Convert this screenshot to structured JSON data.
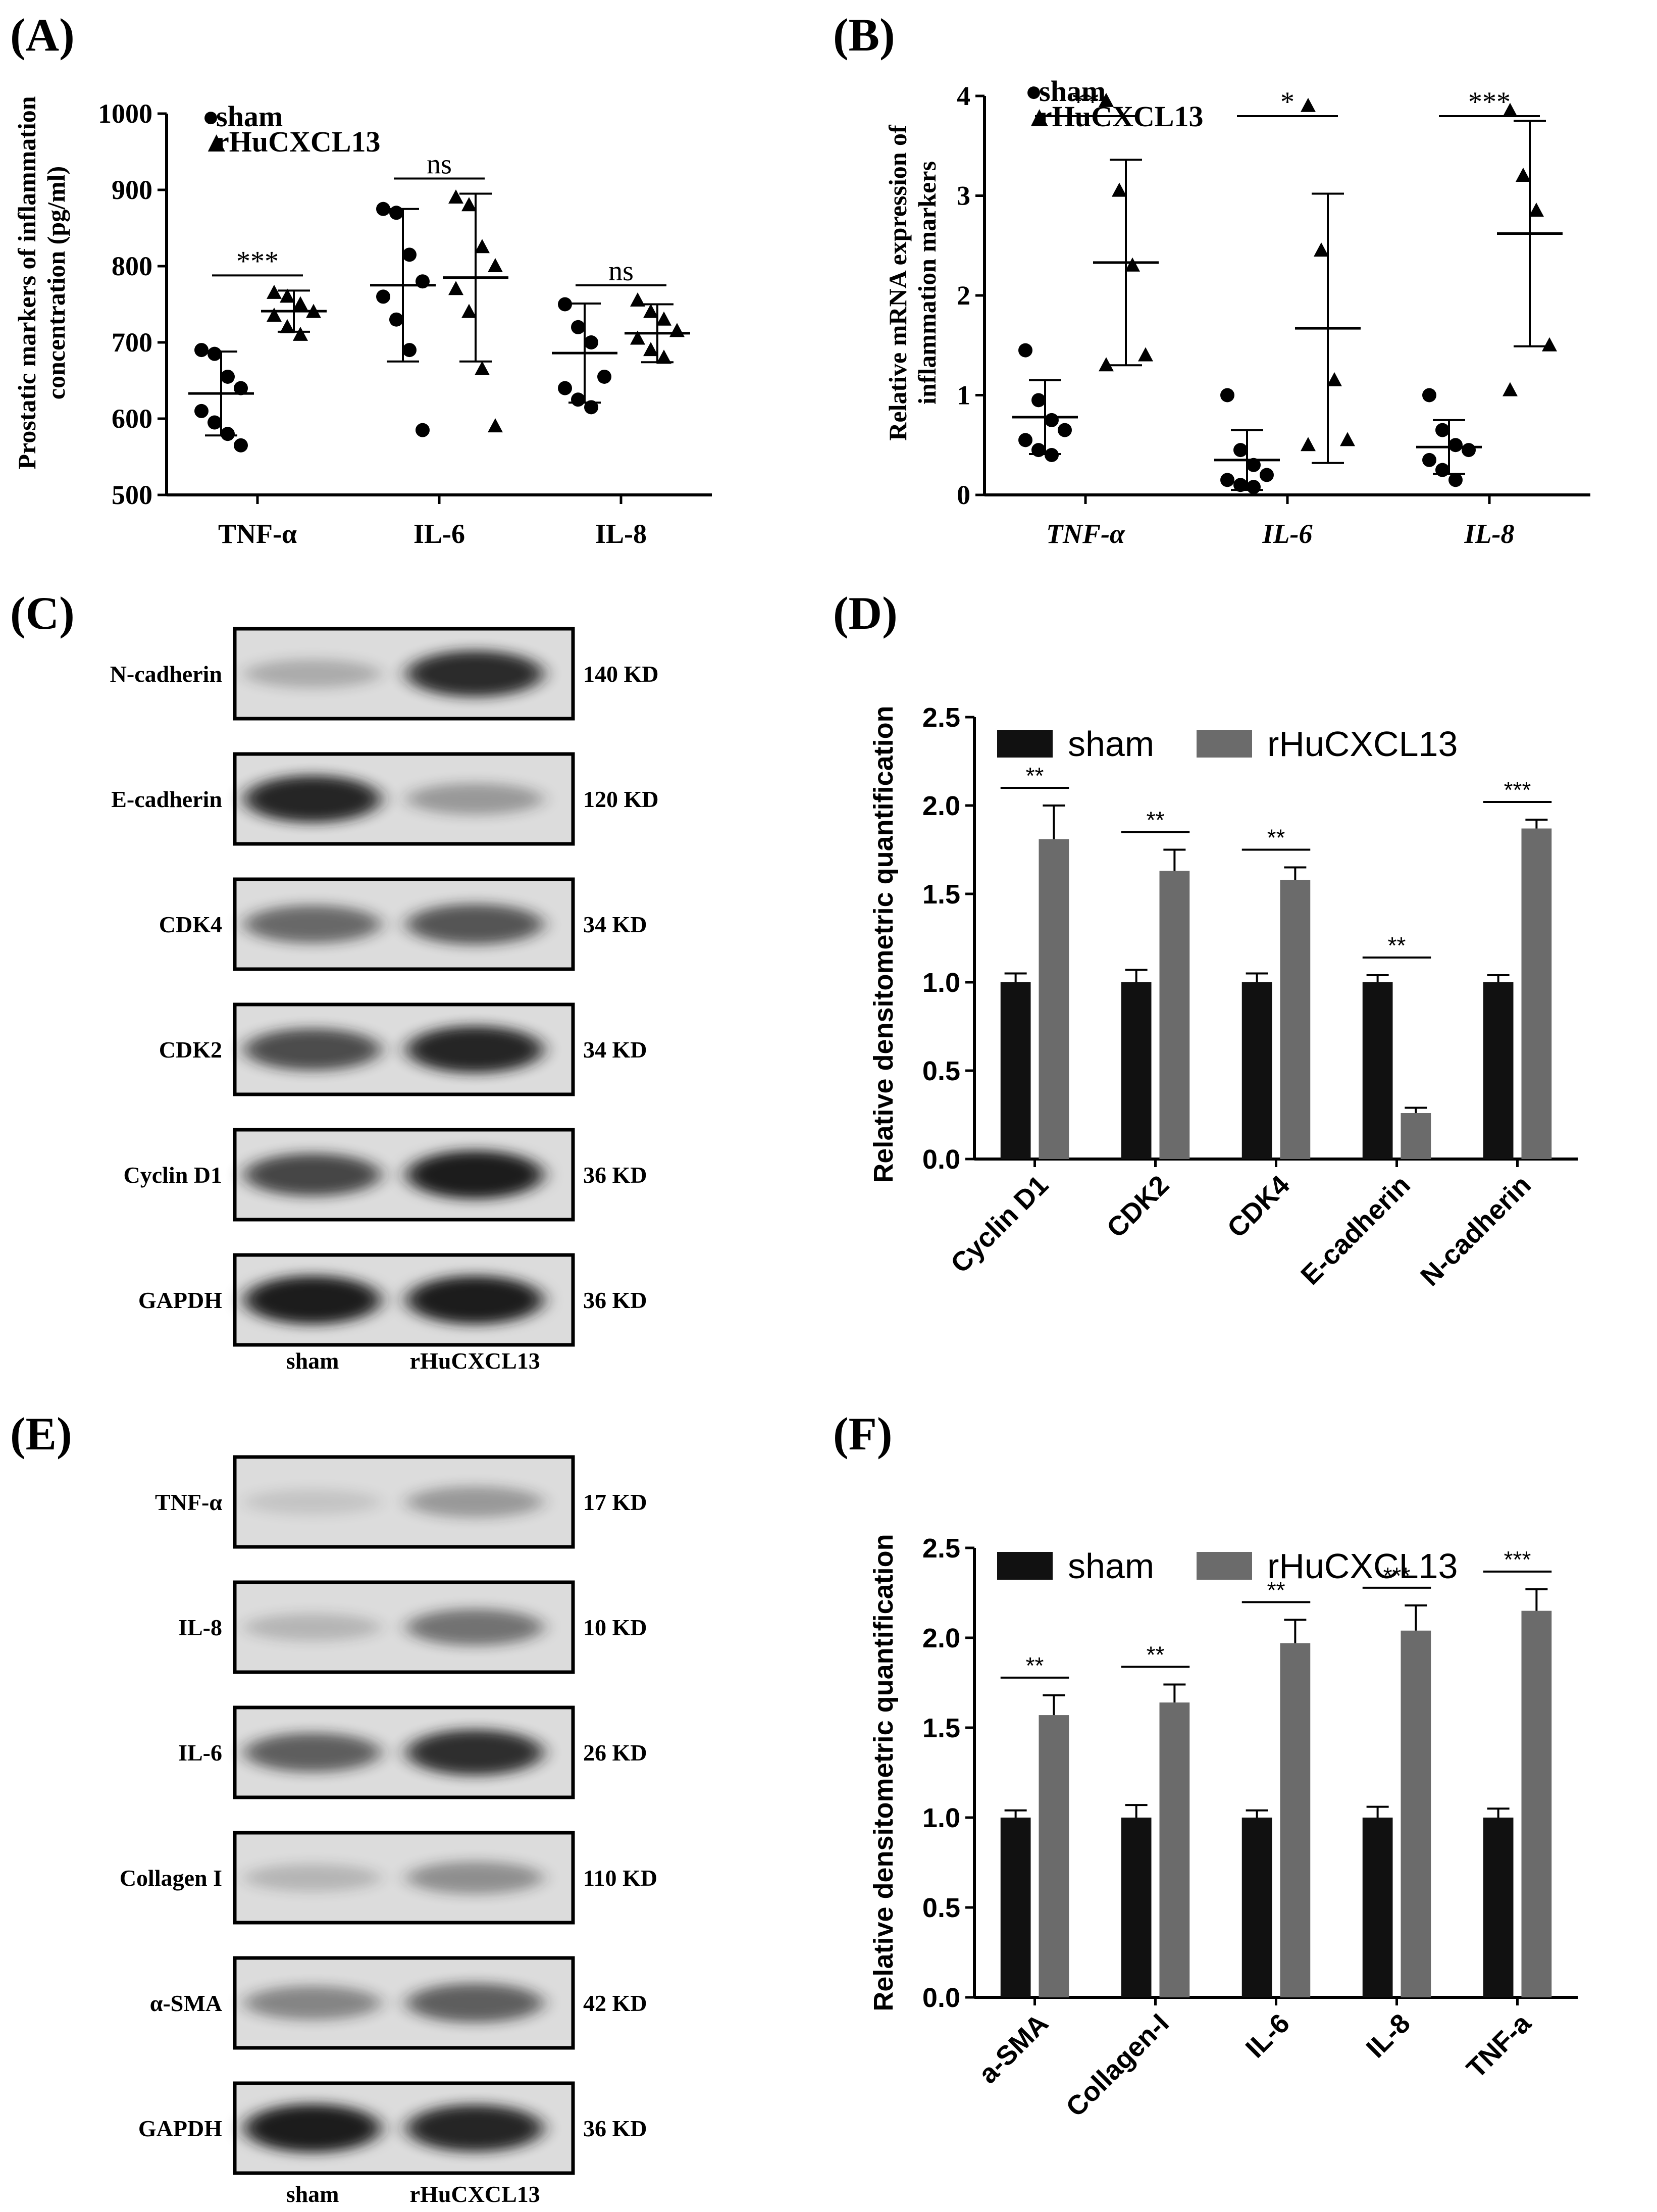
{
  "panels": {
    "A": "(A)",
    "B": "(B)",
    "C": "(C)",
    "D": "(D)",
    "E": "(E)",
    "F": "(F)"
  },
  "colors": {
    "sham": "#111111",
    "rHuCXCL13": "#6b6b6b",
    "membrane": "#dcdcdc",
    "band": "#1a1a1a"
  },
  "chart_data": [
    {
      "panel": "A",
      "type": "scatter",
      "ylabel_line1": "Prostatic markers of inflammation",
      "ylabel_line2": "concentration (pg/ml)",
      "ylim": [
        500,
        1000
      ],
      "yticks": [
        500,
        600,
        700,
        800,
        900,
        1000
      ],
      "legend": [
        {
          "name": "sham",
          "marker": "circle"
        },
        {
          "name": "rHuCXCL13",
          "marker": "triangle"
        }
      ],
      "legend_marks": {
        "sham": "●",
        "rHuCXCL13": "▲"
      },
      "categories": [
        "TNF-α",
        "IL-6",
        "IL-8"
      ],
      "series": [
        {
          "name": "sham",
          "marker": "circle",
          "points": [
            [
              690,
              685,
              655,
              640,
              610,
              595,
              580,
              565
            ],
            [
              875,
              870,
              815,
              780,
              760,
              730,
              690,
              585
            ],
            [
              750,
              720,
              700,
              655,
              640,
              625,
              615
            ]
          ],
          "mean": [
            633,
            775,
            686
          ],
          "sd": [
            55,
            100,
            65
          ]
        },
        {
          "name": "rHuCXCL13",
          "marker": "triangle",
          "points": [
            [
              765,
              760,
              750,
              740,
              735,
              720,
              710
            ],
            [
              890,
              880,
              825,
              800,
              770,
              740,
              665,
              590
            ],
            [
              755,
              740,
              730,
              715,
              705,
              690,
              680
            ]
          ],
          "mean": [
            741,
            785,
            712
          ],
          "sd": [
            27,
            110,
            38
          ]
        }
      ],
      "significance": [
        "***",
        "ns",
        "ns"
      ]
    },
    {
      "panel": "B",
      "type": "scatter",
      "ylabel_line1": "Relative mRNA expression of",
      "ylabel_line2": "inflammation markers",
      "ylim": [
        0,
        4
      ],
      "yticks": [
        0,
        1,
        2,
        3,
        4
      ],
      "legend": [
        {
          "name": "sham",
          "marker": "circle"
        },
        {
          "name": "rHuCXCL13",
          "marker": "triangle"
        }
      ],
      "legend_marks": {
        "sham": "●",
        "rHuCXCL13": "▲"
      },
      "categories": [
        "TNF-α",
        "IL-6",
        "IL-8"
      ],
      "series": [
        {
          "name": "sham",
          "marker": "circle",
          "points": [
            [
              1.45,
              0.95,
              0.75,
              0.65,
              0.55,
              0.45,
              0.4
            ],
            [
              1.0,
              0.45,
              0.3,
              0.2,
              0.15,
              0.1,
              0.08
            ],
            [
              1.0,
              0.65,
              0.5,
              0.45,
              0.35,
              0.25,
              0.15
            ]
          ],
          "mean": [
            0.78,
            0.35,
            0.48
          ],
          "sd": [
            0.37,
            0.3,
            0.27
          ]
        },
        {
          "name": "rHuCXCL13",
          "marker": "triangle",
          "points": [
            [
              3.95,
              3.05,
              2.3,
              1.4,
              1.3
            ],
            [
              3.9,
              2.45,
              1.15,
              0.55,
              0.5
            ],
            [
              3.85,
              3.2,
              2.85,
              1.5,
              1.05
            ]
          ],
          "mean": [
            2.33,
            1.67,
            2.62
          ],
          "sd": [
            1.03,
            1.35,
            1.13
          ]
        }
      ],
      "significance": [
        "**",
        "*",
        "***"
      ]
    },
    {
      "panel": "D",
      "type": "bar",
      "ylabel": "Relative densitometric quantification",
      "ylim": [
        0,
        2.5
      ],
      "yticks": [
        "0.0",
        "0.5",
        "1.0",
        "1.5",
        "2.0",
        "2.5"
      ],
      "categories": [
        "Cyclin D1",
        "CDK2",
        "CDK4",
        "E-cadherin",
        "N-cadherin"
      ],
      "series": [
        {
          "name": "sham",
          "values": [
            1.0,
            1.0,
            1.0,
            1.0,
            1.0
          ],
          "err": [
            0.05,
            0.07,
            0.05,
            0.04,
            0.04
          ]
        },
        {
          "name": "rHuCXCL13",
          "values": [
            1.81,
            1.63,
            1.58,
            0.26,
            1.87
          ],
          "err": [
            0.19,
            0.12,
            0.07,
            0.03,
            0.05
          ]
        }
      ],
      "significance": [
        "**",
        "**",
        "**",
        "**",
        "***"
      ]
    },
    {
      "panel": "F",
      "type": "bar",
      "ylabel": "Relative densitometric quantification",
      "ylim": [
        0,
        2.5
      ],
      "yticks": [
        "0.0",
        "0.5",
        "1.0",
        "1.5",
        "2.0",
        "2.5"
      ],
      "categories": [
        "a-SMA",
        "Collagen-I",
        "IL-6",
        "IL-8",
        "TNF-a"
      ],
      "series": [
        {
          "name": "sham",
          "values": [
            1.0,
            1.0,
            1.0,
            1.0,
            1.0
          ],
          "err": [
            0.04,
            0.07,
            0.04,
            0.06,
            0.05
          ]
        },
        {
          "name": "rHuCXCL13",
          "values": [
            1.57,
            1.64,
            1.97,
            2.04,
            2.15
          ],
          "err": [
            0.11,
            0.1,
            0.13,
            0.14,
            0.12
          ]
        }
      ],
      "significance": [
        "**",
        "**",
        "**",
        "***",
        "***"
      ]
    }
  ],
  "blots": [
    {
      "panel": "C",
      "lanes": [
        "sham",
        "rHuCXCL13"
      ],
      "rows": [
        {
          "protein": "N-cadherin",
          "size": "140 KD",
          "intensity": [
            0.25,
            0.92
          ]
        },
        {
          "protein": "E-cadherin",
          "size": "120 KD",
          "intensity": [
            0.95,
            0.35
          ]
        },
        {
          "protein": "CDK4",
          "size": "34 KD",
          "intensity": [
            0.6,
            0.7
          ]
        },
        {
          "protein": "CDK2",
          "size": "34 KD",
          "intensity": [
            0.75,
            0.95
          ]
        },
        {
          "protein": "Cyclin D1",
          "size": "36 KD",
          "intensity": [
            0.78,
            1.0
          ]
        },
        {
          "protein": "GAPDH",
          "size": "36 KD",
          "intensity": [
            1.0,
            1.0
          ]
        }
      ]
    },
    {
      "panel": "E",
      "lanes": [
        "sham",
        "rHuCXCL13"
      ],
      "rows": [
        {
          "protein": "TNF-α",
          "size": "17 KD",
          "intensity": [
            0.12,
            0.35
          ]
        },
        {
          "protein": "IL-8",
          "size": "10 KD",
          "intensity": [
            0.2,
            0.55
          ]
        },
        {
          "protein": "IL-6",
          "size": "26 KD",
          "intensity": [
            0.65,
            0.9
          ]
        },
        {
          "protein": "Collagen I",
          "size": "110 KD",
          "intensity": [
            0.2,
            0.4
          ]
        },
        {
          "protein": "α-SMA",
          "size": "42 KD",
          "intensity": [
            0.45,
            0.65
          ]
        },
        {
          "protein": "GAPDH",
          "size": "36 KD",
          "intensity": [
            1.0,
            0.95
          ]
        }
      ]
    }
  ]
}
